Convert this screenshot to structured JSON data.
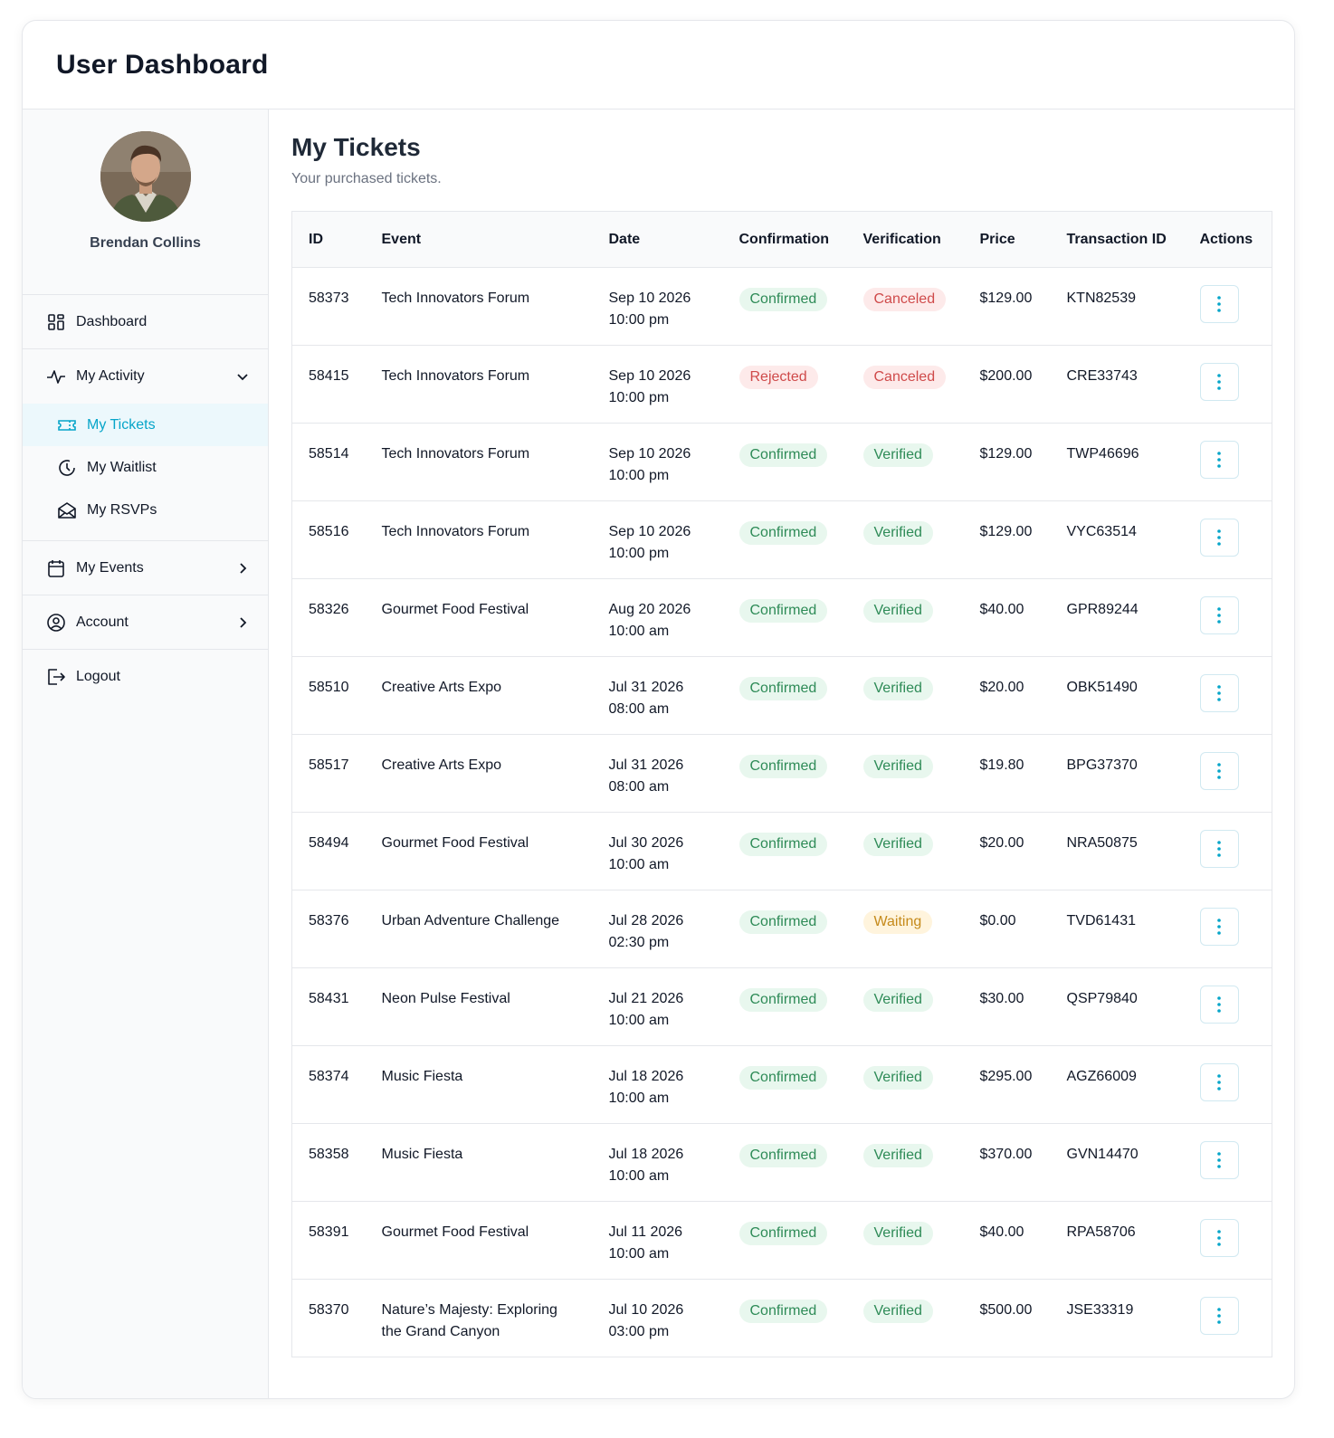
{
  "app": {
    "title": "User Dashboard"
  },
  "profile": {
    "name": "Brendan Collins"
  },
  "sidebar": {
    "dashboard": "Dashboard",
    "activity": "My Activity",
    "sub": {
      "tickets": "My Tickets",
      "waitlist": "My Waitlist",
      "rsvps": "My RSVPs"
    },
    "events": "My Events",
    "account": "Account",
    "logout": "Logout"
  },
  "main": {
    "title": "My Tickets",
    "subtitle": "Your purchased tickets."
  },
  "table": {
    "headers": {
      "id": "ID",
      "event": "Event",
      "date": "Date",
      "confirmation": "Confirmation",
      "verification": "Verification",
      "price": "Price",
      "transaction": "Transaction ID",
      "actions": "Actions"
    },
    "rows": [
      {
        "id": "58373",
        "event": "Tech Innovators Forum",
        "date": "Sep 10 2026",
        "time": "10:00 pm",
        "confirmation": "Confirmed",
        "verification": "Canceled",
        "price": "$129.00",
        "tx": "KTN82539"
      },
      {
        "id": "58415",
        "event": "Tech Innovators Forum",
        "date": "Sep 10 2026",
        "time": "10:00 pm",
        "confirmation": "Rejected",
        "verification": "Canceled",
        "price": "$200.00",
        "tx": "CRE33743"
      },
      {
        "id": "58514",
        "event": "Tech Innovators Forum",
        "date": "Sep 10 2026",
        "time": "10:00 pm",
        "confirmation": "Confirmed",
        "verification": "Verified",
        "price": "$129.00",
        "tx": "TWP46696"
      },
      {
        "id": "58516",
        "event": "Tech Innovators Forum",
        "date": "Sep 10 2026",
        "time": "10:00 pm",
        "confirmation": "Confirmed",
        "verification": "Verified",
        "price": "$129.00",
        "tx": "VYC63514"
      },
      {
        "id": "58326",
        "event": "Gourmet Food Festival",
        "date": "Aug 20 2026",
        "time": "10:00 am",
        "confirmation": "Confirmed",
        "verification": "Verified",
        "price": "$40.00",
        "tx": "GPR89244"
      },
      {
        "id": "58510",
        "event": "Creative Arts Expo",
        "date": "Jul 31 2026",
        "time": "08:00 am",
        "confirmation": "Confirmed",
        "verification": "Verified",
        "price": "$20.00",
        "tx": "OBK51490"
      },
      {
        "id": "58517",
        "event": "Creative Arts Expo",
        "date": "Jul 31 2026",
        "time": "08:00 am",
        "confirmation": "Confirmed",
        "verification": "Verified",
        "price": "$19.80",
        "tx": "BPG37370"
      },
      {
        "id": "58494",
        "event": "Gourmet Food Festival",
        "date": "Jul 30 2026",
        "time": "10:00 am",
        "confirmation": "Confirmed",
        "verification": "Verified",
        "price": "$20.00",
        "tx": "NRA50875"
      },
      {
        "id": "58376",
        "event": "Urban Adventure Challenge",
        "date": "Jul 28 2026",
        "time": "02:30 pm",
        "confirmation": "Confirmed",
        "verification": "Waiting",
        "price": "$0.00",
        "tx": "TVD61431"
      },
      {
        "id": "58431",
        "event": "Neon Pulse Festival",
        "date": "Jul 21 2026",
        "time": "10:00 am",
        "confirmation": "Confirmed",
        "verification": "Verified",
        "price": "$30.00",
        "tx": "QSP79840"
      },
      {
        "id": "58374",
        "event": "Music Fiesta",
        "date": "Jul 18 2026",
        "time": "10:00 am",
        "confirmation": "Confirmed",
        "verification": "Verified",
        "price": "$295.00",
        "tx": "AGZ66009"
      },
      {
        "id": "58358",
        "event": "Music Fiesta",
        "date": "Jul 18 2026",
        "time": "10:00 am",
        "confirmation": "Confirmed",
        "verification": "Verified",
        "price": "$370.00",
        "tx": "GVN14470"
      },
      {
        "id": "58391",
        "event": "Gourmet Food Festival",
        "date": "Jul 11 2026",
        "time": "10:00 am",
        "confirmation": "Confirmed",
        "verification": "Verified",
        "price": "$40.00",
        "tx": "RPA58706"
      },
      {
        "id": "58370",
        "event": "Nature’s Majesty: Exploring the Grand Canyon",
        "date": "Jul 10 2026",
        "time": "03:00 pm",
        "confirmation": "Confirmed",
        "verification": "Verified",
        "price": "$500.00",
        "tx": "JSE33319"
      }
    ]
  },
  "colors": {
    "accent": "#06a5c9",
    "success": "#2e8b57",
    "danger": "#cf4a4a",
    "warning": "#c58a1b"
  },
  "icons": {
    "dashboard": "grid-icon",
    "activity": "pulse-icon",
    "tickets": "ticket-icon",
    "waitlist": "clock-icon",
    "rsvps": "envelope-icon",
    "events": "calendar-icon",
    "account": "user-circle-icon",
    "logout": "logout-icon",
    "actions": "kebab-icon"
  }
}
